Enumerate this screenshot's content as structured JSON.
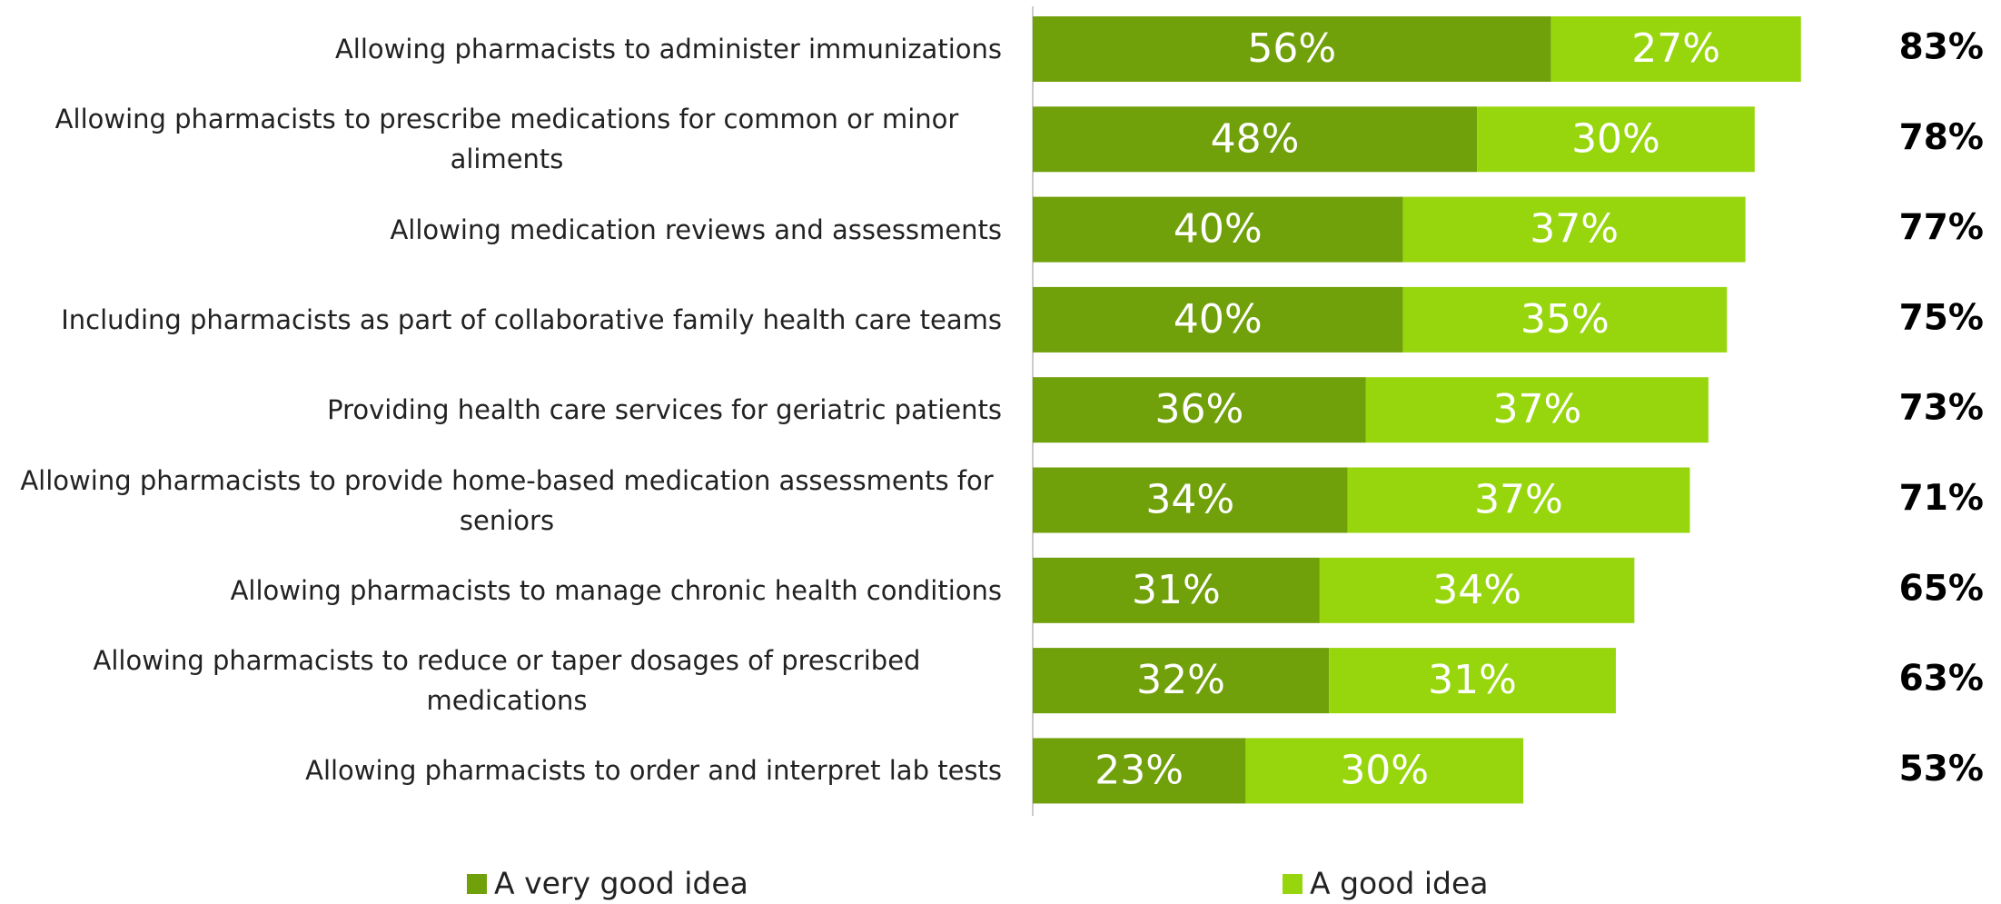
{
  "chart_data": {
    "type": "stacked-bar-horizontal",
    "categories": [
      "Allowing pharmacists to administer immunizations",
      "Allowing pharmacists to prescribe medications for common or minor aliments",
      "Allowing medication reviews and assessments",
      "Including pharmacists as part of collaborative family health care teams",
      "Providing health care services for geriatric patients",
      "Allowing pharmacists to provide home-based medication assessments for seniors",
      "Allowing pharmacists to manage chronic health conditions",
      "Allowing pharmacists to reduce or taper dosages of prescribed medications",
      "Allowing pharmacists to order and interpret lab tests"
    ],
    "series": [
      {
        "name": "A very good idea",
        "color": "#70a00a",
        "values": [
          56,
          48,
          40,
          40,
          36,
          34,
          31,
          32,
          23
        ],
        "value_labels": [
          "56%",
          "48%",
          "40%",
          "40%",
          "36%",
          "34%",
          "31%",
          "32%",
          "23%"
        ]
      },
      {
        "name": "A good idea",
        "color": "#97d60c",
        "values": [
          27,
          30,
          37,
          35,
          37,
          37,
          34,
          31,
          30
        ],
        "value_labels": [
          "27%",
          "30%",
          "37%",
          "35%",
          "37%",
          "37%",
          "34%",
          "31%",
          "30%"
        ]
      }
    ],
    "totals": [
      83,
      78,
      77,
      75,
      73,
      71,
      65,
      63,
      53
    ],
    "total_labels": [
      "83%",
      "78%",
      "77%",
      "75%",
      "73%",
      "71%",
      "65%",
      "63%",
      "53%"
    ],
    "legend": "bottom"
  }
}
